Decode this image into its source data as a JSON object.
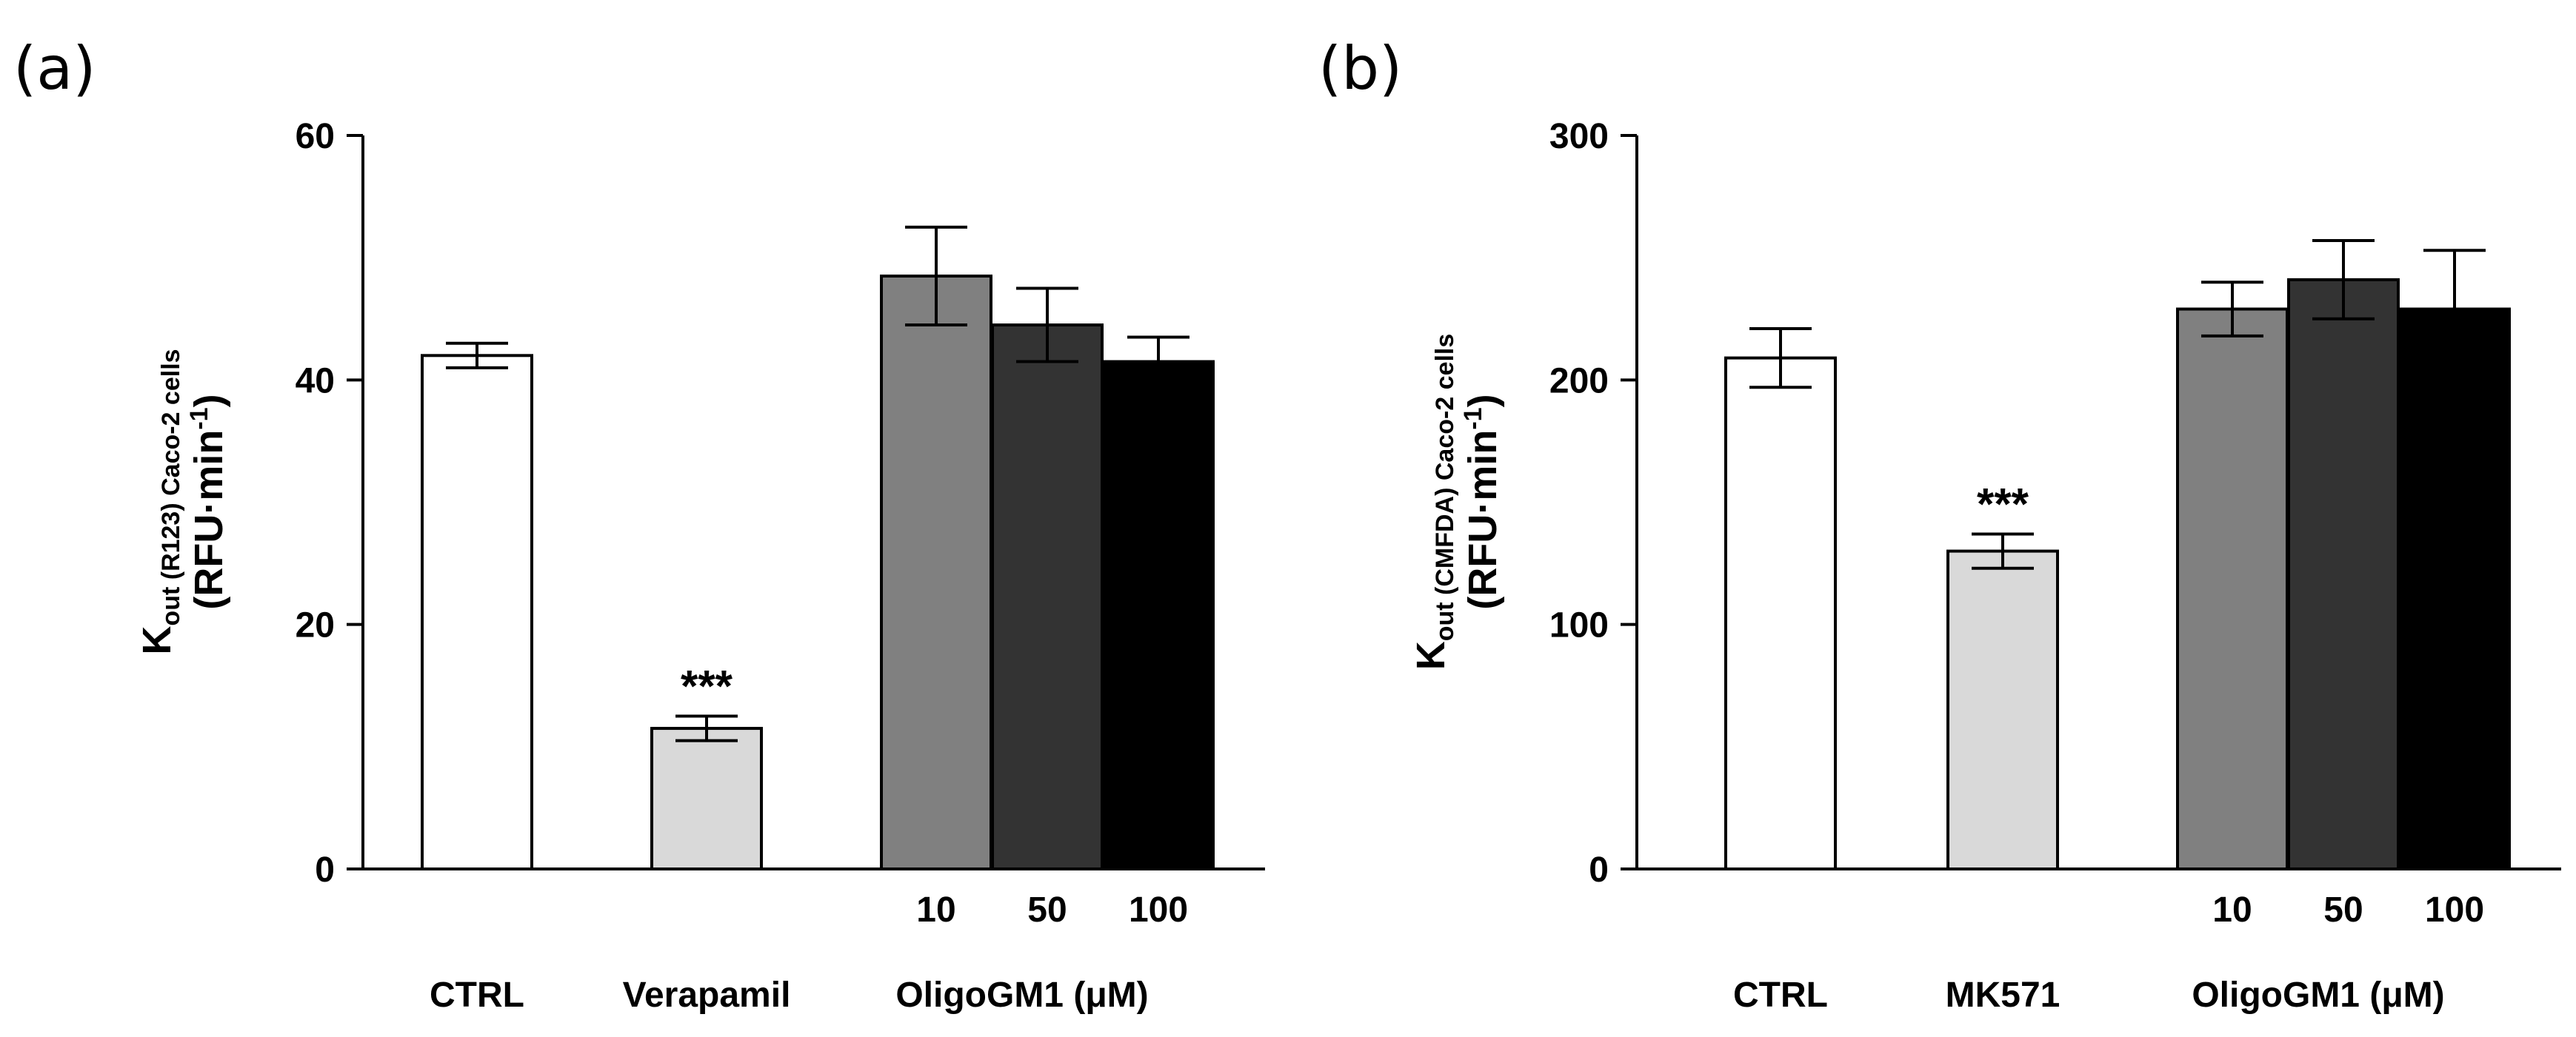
{
  "chart_data": [
    {
      "type": "bar",
      "panel_label": "(a)",
      "ylabel": {
        "main": "K",
        "sub": "out (R123) Caco-2 cells",
        "unit": "(RFU·min",
        "sup": "-1",
        "close": ")"
      },
      "ylim": [
        0,
        60
      ],
      "yticks": [
        0,
        20,
        40,
        60
      ],
      "bars": [
        {
          "label": "CTRL",
          "value": 42,
          "err": 1,
          "color": "#ffffff"
        },
        {
          "label": "Verapamil",
          "value": 11.5,
          "err": 1,
          "color": "#d9d9d9",
          "annotation": "***"
        },
        {
          "label": "10",
          "value": 48.5,
          "err": 4,
          "color": "#808080"
        },
        {
          "label": "50",
          "value": 44.5,
          "err": 3,
          "color": "#333333"
        },
        {
          "label": "100",
          "value": 41.5,
          "err": 2,
          "color": "#000000"
        }
      ],
      "group_label": "OligoGM1 (μM)"
    },
    {
      "type": "bar",
      "panel_label": "(b)",
      "ylabel": {
        "main": "K",
        "sub": "out (CMFDA) Caco-2 cells",
        "unit": "(RFU·min",
        "sup": "-1",
        "close": ")"
      },
      "ylim": [
        0,
        300
      ],
      "yticks": [
        0,
        100,
        200,
        300
      ],
      "bars": [
        {
          "label": "CTRL",
          "value": 209,
          "err": 12,
          "color": "#ffffff"
        },
        {
          "label": "MK571",
          "value": 130,
          "err": 7,
          "color": "#d9d9d9",
          "annotation": "***"
        },
        {
          "label": "10",
          "value": 229,
          "err": 11,
          "color": "#808080"
        },
        {
          "label": "50",
          "value": 241,
          "err": 16,
          "color": "#333333"
        },
        {
          "label": "100",
          "value": 229,
          "err": 24,
          "color": "#000000"
        }
      ],
      "group_label": "OligoGM1 (μM)"
    }
  ]
}
